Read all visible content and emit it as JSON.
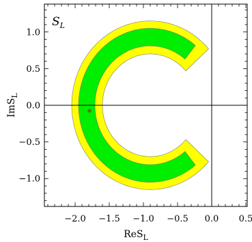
{
  "chart_data": {
    "type": "scatter",
    "panel_label": "S",
    "panel_label_sub": "L",
    "xlabel": "ReS",
    "xlabel_sub": "L",
    "ylabel": "ImS",
    "ylabel_sub": "L",
    "xlim": [
      -2.45,
      0.52
    ],
    "ylim": [
      -1.38,
      1.38
    ],
    "x_ticks": [
      {
        "value": -2.0,
        "label": "−2.0"
      },
      {
        "value": -1.5,
        "label": "−1.5"
      },
      {
        "value": -1.0,
        "label": "−1.0"
      },
      {
        "value": -0.5,
        "label": "−0.5"
      },
      {
        "value": 0.0,
        "label": "0.0"
      },
      {
        "value": 0.5,
        "label": "0.5"
      }
    ],
    "y_ticks": [
      {
        "value": 1.0,
        "label": "1.0"
      },
      {
        "value": 0.5,
        "label": "0.5"
      },
      {
        "value": 0.0,
        "label": "0.0"
      },
      {
        "value": -0.5,
        "label": "−0.5"
      },
      {
        "value": -1.0,
        "label": "−1.0"
      }
    ],
    "minor_step": 0.1,
    "reference_lines": {
      "x": 0.0,
      "y": 0.0
    },
    "regions": [
      {
        "name": "outer",
        "color": "#ffff00",
        "center": [
          -0.9,
          0.0
        ],
        "r_inner": 0.7,
        "r_outer": 1.15,
        "cut_angle_deg": 42
      },
      {
        "name": "inner",
        "color": "#00ee00",
        "center": [
          -0.9,
          0.0
        ],
        "r_inner": 0.81,
        "r_outer": 1.05,
        "cut_angle_deg": 51
      }
    ],
    "best_fit": {
      "x": -1.79,
      "y": -0.09,
      "marker": "*",
      "color": "#c00000"
    }
  }
}
